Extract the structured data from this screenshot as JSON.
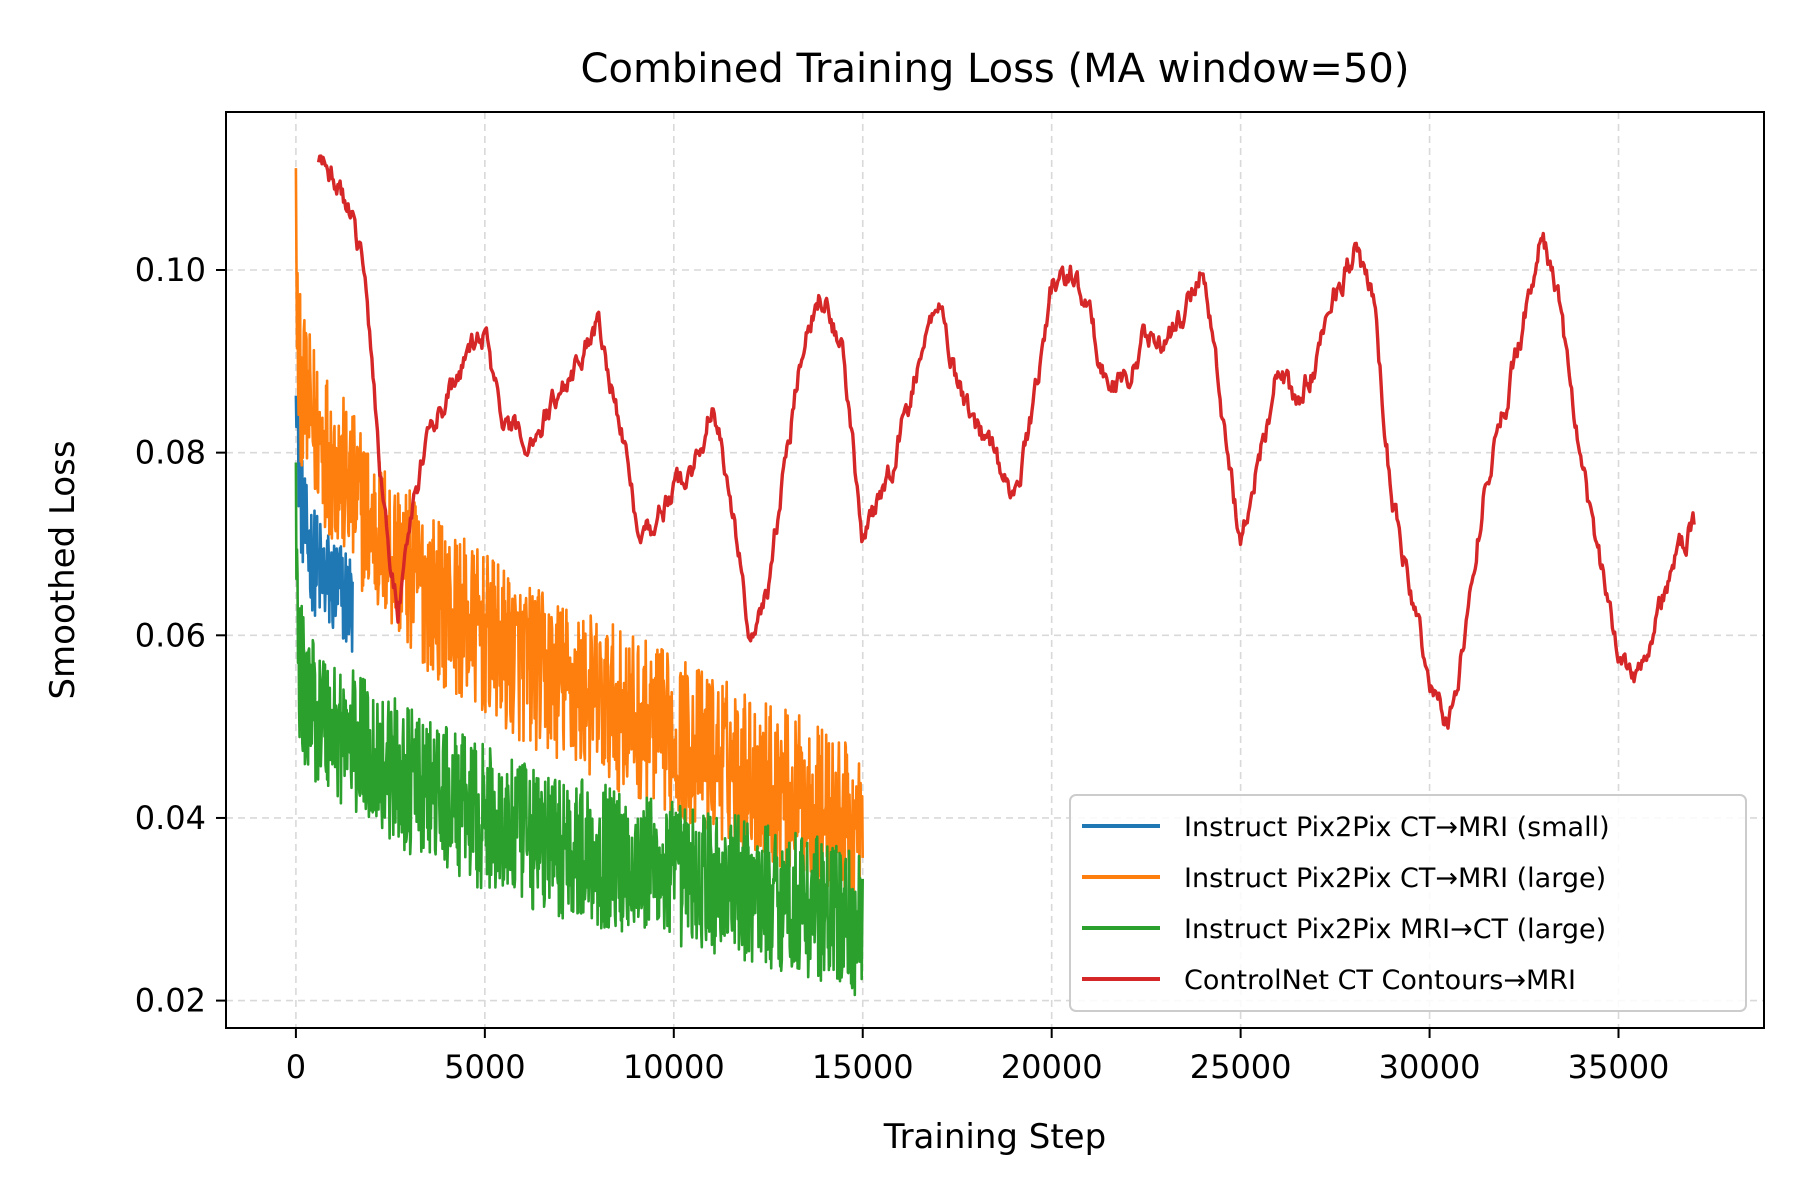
{
  "chart_data": {
    "type": "line",
    "title": "Combined Training Loss (MA window=50)",
    "xlabel": "Training Step",
    "ylabel": "Smoothed Loss",
    "xlim": [
      -1850,
      38850
    ],
    "ylim": [
      0.017,
      0.1173
    ],
    "xticks": [
      0,
      5000,
      10000,
      15000,
      20000,
      25000,
      30000,
      35000
    ],
    "xtick_labels": [
      "0",
      "5000",
      "10000",
      "15000",
      "20000",
      "25000",
      "30000",
      "35000"
    ],
    "yticks": [
      0.02,
      0.04,
      0.06,
      0.08,
      0.1
    ],
    "ytick_labels": [
      "0.02",
      "0.04",
      "0.06",
      "0.08",
      "0.10"
    ],
    "grid": true,
    "legend_position": "lower-right",
    "series": [
      {
        "name": "Instruct Pix2Pix CT→MRI (small)",
        "color": "#1f77b4",
        "style": "noisy",
        "noise": 0.006,
        "x": [
          0,
          50,
          150,
          300,
          500,
          800,
          1100,
          1400,
          1500
        ],
        "y": [
          0.092,
          0.08,
          0.074,
          0.07,
          0.068,
          0.066,
          0.065,
          0.064,
          0.063
        ]
      },
      {
        "name": "Instruct Pix2Pix CT→MRI (large)",
        "color": "#ff7f0e",
        "style": "noisy",
        "noise": 0.009,
        "x": [
          0,
          50,
          200,
          500,
          1000,
          2000,
          3000,
          4000,
          5000,
          6000,
          7000,
          8000,
          9000,
          10000,
          11000,
          12000,
          13000,
          14000,
          15000
        ],
        "y": [
          0.105,
          0.09,
          0.086,
          0.083,
          0.079,
          0.072,
          0.067,
          0.063,
          0.06,
          0.057,
          0.055,
          0.053,
          0.051,
          0.049,
          0.047,
          0.045,
          0.043,
          0.041,
          0.038
        ]
      },
      {
        "name": "Instruct Pix2Pix MRI→CT (large)",
        "color": "#2ca02c",
        "style": "noisy",
        "noise": 0.008,
        "x": [
          0,
          50,
          200,
          500,
          1000,
          2000,
          3000,
          4000,
          5000,
          6000,
          7000,
          8000,
          9000,
          10000,
          11000,
          12000,
          13000,
          14000,
          15000
        ],
        "y": [
          0.075,
          0.058,
          0.054,
          0.052,
          0.05,
          0.047,
          0.044,
          0.042,
          0.04,
          0.038,
          0.037,
          0.036,
          0.035,
          0.034,
          0.033,
          0.032,
          0.031,
          0.03,
          0.028
        ]
      },
      {
        "name": "ControlNet CT Contours→MRI",
        "color": "#d62728",
        "style": "wiggly",
        "noise": 0.0022,
        "x": [
          600,
          1000,
          1500,
          1800,
          2000,
          2200,
          2500,
          2700,
          3000,
          3500,
          4000,
          4500,
          5000,
          5500,
          6000,
          6500,
          7000,
          7500,
          8000,
          8500,
          9000,
          9500,
          10000,
          10500,
          11000,
          11500,
          12000,
          12300,
          12500,
          13000,
          13500,
          14000,
          14500,
          15000,
          15500,
          16000,
          16500,
          17000,
          17500,
          18000,
          18500,
          19000,
          19500,
          20000,
          20500,
          21000,
          21500,
          22000,
          22500,
          23000,
          23500,
          24000,
          24500,
          25000,
          25500,
          26000,
          26500,
          27000,
          27500,
          28000,
          28500,
          29000,
          29500,
          30000,
          30500,
          31000,
          31500,
          32000,
          32500,
          33000,
          33500,
          34000,
          34500,
          35000,
          35500,
          36000,
          36500,
          37000
        ],
        "y": [
          0.111,
          0.11,
          0.106,
          0.1,
          0.09,
          0.08,
          0.068,
          0.063,
          0.072,
          0.082,
          0.086,
          0.09,
          0.093,
          0.083,
          0.081,
          0.083,
          0.087,
          0.09,
          0.095,
          0.085,
          0.073,
          0.072,
          0.076,
          0.078,
          0.085,
          0.076,
          0.06,
          0.062,
          0.066,
          0.08,
          0.095,
          0.098,
          0.09,
          0.07,
          0.075,
          0.082,
          0.09,
          0.097,
          0.088,
          0.083,
          0.08,
          0.074,
          0.085,
          0.098,
          0.1,
          0.095,
          0.087,
          0.088,
          0.093,
          0.092,
          0.095,
          0.101,
          0.085,
          0.07,
          0.08,
          0.089,
          0.085,
          0.09,
          0.098,
          0.102,
          0.097,
          0.075,
          0.065,
          0.055,
          0.05,
          0.062,
          0.078,
          0.085,
          0.095,
          0.104,
          0.095,
          0.078,
          0.068,
          0.058,
          0.056,
          0.062,
          0.068,
          0.072
        ]
      }
    ]
  }
}
